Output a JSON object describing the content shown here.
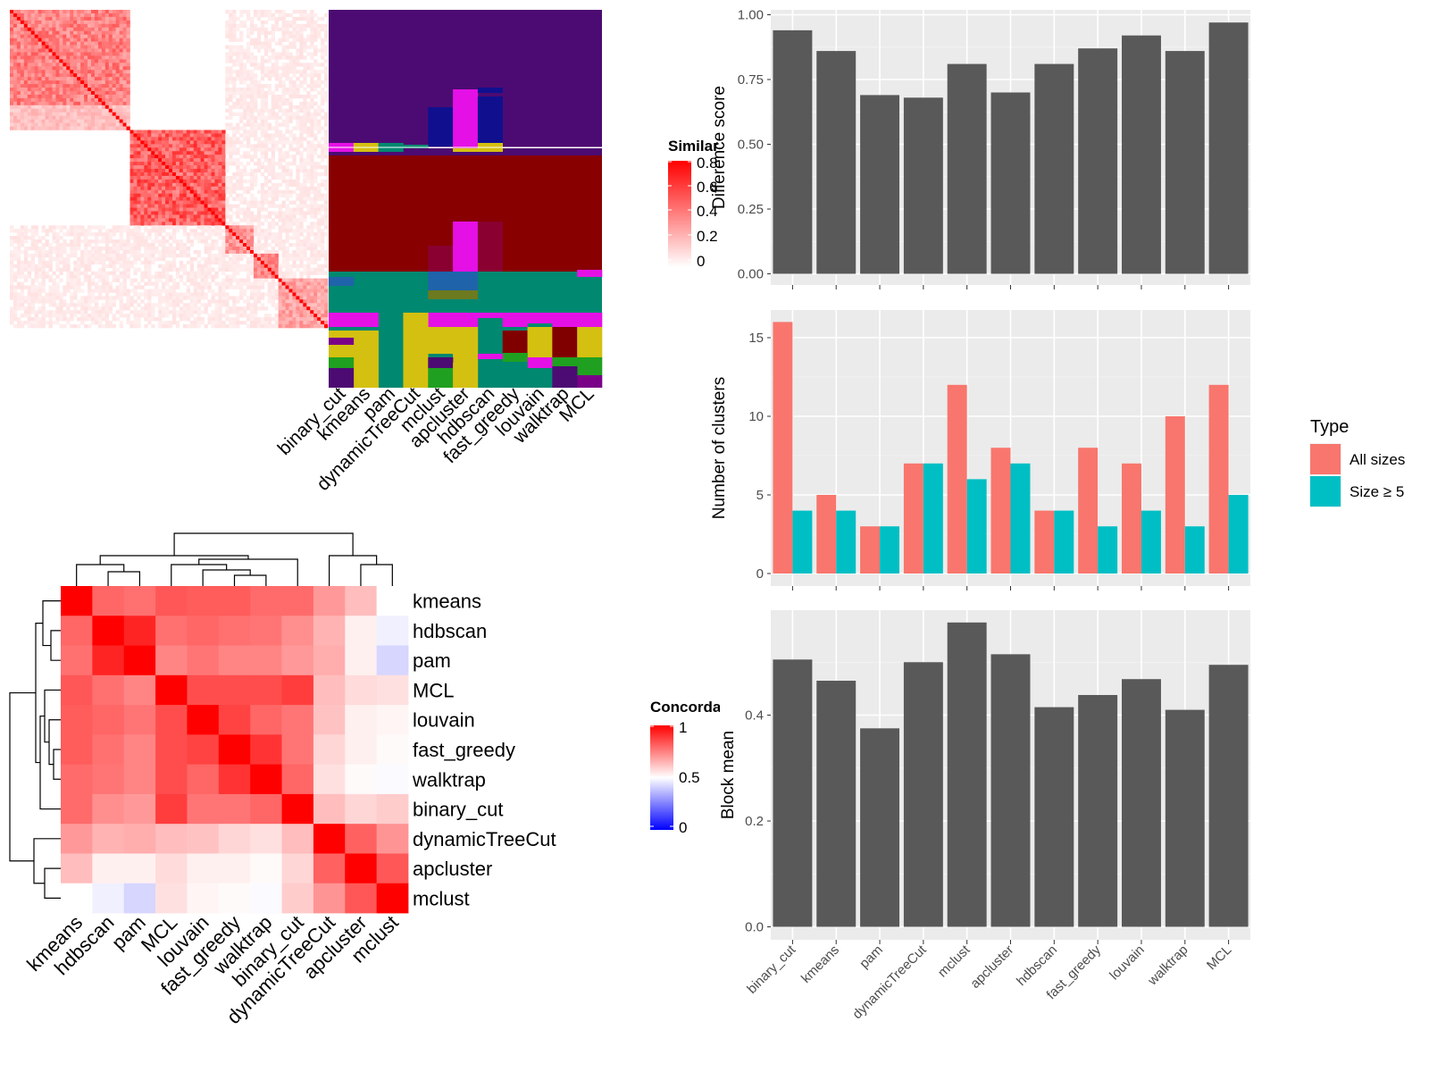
{
  "methods_ordered": [
    "binary_cut",
    "kmeans",
    "pam",
    "dynamicTreeCut",
    "mclust",
    "apcluster",
    "hdbscan",
    "fast_greedy",
    "louvain",
    "walktrap",
    "MCL"
  ],
  "similarity_legend": {
    "title": "Similarity",
    "ticks": [
      "0.8",
      "0.6",
      "0.4",
      "0.2",
      "0"
    ]
  },
  "concordance_legend": {
    "title": "Concordance",
    "ticks": [
      "1",
      "0.5",
      "0"
    ]
  },
  "type_legend": {
    "title": "Type",
    "items": [
      {
        "label": "All sizes",
        "color": "#F8766D"
      },
      {
        "label": "Size ≥ 5",
        "color": "#00BFC4"
      }
    ]
  },
  "concordance_order": [
    "kmeans",
    "hdbscan",
    "pam",
    "MCL",
    "louvain",
    "fast_greedy",
    "walktrap",
    "binary_cut",
    "dynamicTreeCut",
    "apcluster",
    "mclust"
  ],
  "chart_data": [
    {
      "type": "bar",
      "ylabel": "Difference score",
      "ylim": [
        0,
        1
      ],
      "yticks": [
        "0.00",
        "0.25",
        "0.50",
        "0.75",
        "1.00"
      ],
      "categories": [
        "binary_cut",
        "kmeans",
        "pam",
        "dynamicTreeCut",
        "mclust",
        "apcluster",
        "hdbscan",
        "fast_greedy",
        "louvain",
        "walktrap",
        "MCL"
      ],
      "values": [
        0.94,
        0.86,
        0.69,
        0.68,
        0.81,
        0.7,
        0.81,
        0.87,
        0.92,
        0.86,
        0.97
      ]
    },
    {
      "type": "bar",
      "ylabel": "Number of clusters",
      "ylim": [
        0,
        16.5
      ],
      "yticks": [
        "0",
        "5",
        "10",
        "15"
      ],
      "categories": [
        "binary_cut",
        "kmeans",
        "pam",
        "dynamicTreeCut",
        "mclust",
        "apcluster",
        "hdbscan",
        "fast_greedy",
        "louvain",
        "walktrap",
        "MCL"
      ],
      "series": [
        {
          "name": "All sizes",
          "values": [
            16,
            5,
            3,
            7,
            12,
            8,
            4,
            8,
            7,
            10,
            12
          ]
        },
        {
          "name": "Size ≥ 5",
          "values": [
            4,
            4,
            3,
            7,
            6,
            7,
            4,
            3,
            4,
            3,
            5
          ]
        }
      ]
    },
    {
      "type": "bar",
      "ylabel": "Block mean",
      "ylim": [
        0,
        0.6
      ],
      "yticks": [
        "0.0",
        "0.2",
        "0.4"
      ],
      "categories": [
        "binary_cut",
        "kmeans",
        "pam",
        "dynamicTreeCut",
        "mclust",
        "apcluster",
        "hdbscan",
        "fast_greedy",
        "louvain",
        "walktrap",
        "MCL"
      ],
      "values": [
        0.505,
        0.465,
        0.375,
        0.5,
        0.575,
        0.515,
        0.415,
        0.438,
        0.468,
        0.41,
        0.495
      ]
    },
    {
      "type": "heatmap",
      "legend_title": "Concordance",
      "rows": [
        "kmeans",
        "hdbscan",
        "pam",
        "MCL",
        "louvain",
        "fast_greedy",
        "walktrap",
        "binary_cut",
        "dynamicTreeCut",
        "apcluster",
        "mclust"
      ],
      "columns": [
        "kmeans",
        "hdbscan",
        "pam",
        "MCL",
        "louvain",
        "fast_greedy",
        "walktrap",
        "binary_cut",
        "dynamicTreeCut",
        "apcluster",
        "mclust"
      ],
      "values": [
        [
          1.0,
          0.8,
          0.78,
          0.83,
          0.82,
          0.82,
          0.79,
          0.79,
          0.7,
          0.63,
          0.5
        ],
        [
          0.8,
          1.0,
          0.93,
          0.78,
          0.8,
          0.78,
          0.77,
          0.72,
          0.65,
          0.53,
          0.47
        ],
        [
          0.78,
          0.93,
          1.0,
          0.74,
          0.77,
          0.74,
          0.74,
          0.7,
          0.66,
          0.53,
          0.42
        ],
        [
          0.83,
          0.78,
          0.74,
          1.0,
          0.85,
          0.85,
          0.85,
          0.88,
          0.63,
          0.57,
          0.56
        ],
        [
          0.82,
          0.8,
          0.77,
          0.85,
          1.0,
          0.87,
          0.8,
          0.77,
          0.62,
          0.53,
          0.52
        ],
        [
          0.82,
          0.78,
          0.74,
          0.85,
          0.87,
          1.0,
          0.9,
          0.77,
          0.58,
          0.53,
          0.51
        ],
        [
          0.79,
          0.77,
          0.74,
          0.85,
          0.8,
          0.9,
          1.0,
          0.8,
          0.56,
          0.51,
          0.49
        ],
        [
          0.79,
          0.72,
          0.7,
          0.88,
          0.77,
          0.77,
          0.8,
          1.0,
          0.63,
          0.58,
          0.6
        ],
        [
          0.7,
          0.65,
          0.66,
          0.63,
          0.62,
          0.58,
          0.56,
          0.63,
          1.0,
          0.81,
          0.71
        ],
        [
          0.63,
          0.53,
          0.53,
          0.57,
          0.53,
          0.53,
          0.51,
          0.58,
          0.81,
          1.0,
          0.83
        ],
        [
          0.5,
          0.47,
          0.42,
          0.56,
          0.52,
          0.51,
          0.49,
          0.6,
          0.71,
          0.83,
          1.0
        ]
      ]
    }
  ]
}
